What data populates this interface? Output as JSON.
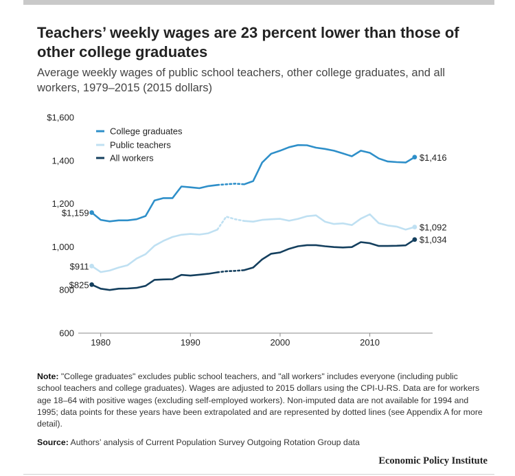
{
  "title": "Teachers’ weekly wages are 23 percent lower than those of other college graduates",
  "subtitle": "Average weekly wages of public school teachers, other college graduates, and all workers, 1979–2015 (2015 dollars)",
  "colors": {
    "college": "#2e8fc9",
    "teachers": "#bfe0f2",
    "workers": "#143f5e",
    "axis": "#888888",
    "text": "#222222"
  },
  "chart_data": {
    "type": "line",
    "title": "",
    "xlabel": "",
    "ylabel": "",
    "xlim": [
      1977.5,
      2017
    ],
    "ylim": [
      600,
      1600
    ],
    "y_ticks": [
      {
        "value": 600,
        "label": "600"
      },
      {
        "value": 800,
        "label": "800"
      },
      {
        "value": 1000,
        "label": "1,000"
      },
      {
        "value": 1200,
        "label": "1,200"
      },
      {
        "value": 1400,
        "label": "1,400"
      },
      {
        "value": 1600,
        "label": "$1,600"
      }
    ],
    "x_ticks": [
      {
        "value": 1980,
        "label": "1980"
      },
      {
        "value": 1990,
        "label": "1990"
      },
      {
        "value": 2000,
        "label": "2000"
      },
      {
        "value": 2010,
        "label": "2010"
      }
    ],
    "legend_position": "top-left",
    "dotted_years": [
      1994,
      1995
    ],
    "x": [
      1979,
      1980,
      1981,
      1982,
      1983,
      1984,
      1985,
      1986,
      1987,
      1988,
      1989,
      1990,
      1991,
      1992,
      1993,
      1994,
      1995,
      1996,
      1997,
      1998,
      1999,
      2000,
      2001,
      2002,
      2003,
      2004,
      2005,
      2006,
      2007,
      2008,
      2009,
      2010,
      2011,
      2012,
      2013,
      2014,
      2015
    ],
    "series": [
      {
        "key": "college",
        "name": "College graduates",
        "values": [
          1159,
          1125,
          1118,
          1123,
          1123,
          1128,
          1143,
          1215,
          1226,
          1226,
          1280,
          1276,
          1272,
          1282,
          1287,
          1290,
          1293,
          1290,
          1305,
          1391,
          1432,
          1446,
          1462,
          1472,
          1471,
          1460,
          1454,
          1446,
          1433,
          1420,
          1446,
          1436,
          1410,
          1396,
          1393,
          1391,
          1416
        ],
        "start_label": "$1,159",
        "end_label": "$1,416"
      },
      {
        "key": "teachers",
        "name": "Public teachers",
        "values": [
          911,
          883,
          890,
          904,
          915,
          946,
          966,
          1005,
          1028,
          1046,
          1056,
          1060,
          1057,
          1063,
          1080,
          1140,
          1128,
          1120,
          1117,
          1125,
          1128,
          1130,
          1121,
          1130,
          1142,
          1146,
          1117,
          1106,
          1109,
          1101,
          1131,
          1151,
          1110,
          1099,
          1094,
          1080,
          1092
        ],
        "start_label": "$911",
        "end_label": "$1,092"
      },
      {
        "key": "workers",
        "name": "All workers",
        "values": [
          825,
          806,
          800,
          806,
          807,
          810,
          819,
          847,
          849,
          850,
          870,
          867,
          871,
          875,
          882,
          887,
          889,
          892,
          904,
          942,
          968,
          974,
          991,
          1003,
          1008,
          1008,
          1003,
          999,
          997,
          999,
          1022,
          1017,
          1004,
          1004,
          1005,
          1007,
          1034
        ],
        "start_label": "$825",
        "end_label": "$1,034"
      }
    ]
  },
  "note_label": "Note:",
  "note_text": "\"College graduates\" excludes public school teachers, and \"all workers\" includes everyone (including public school teachers and college graduates). Wages are adjusted to 2015 dollars using the CPI-U-RS. Data are for workers age 18–64 with positive wages (excluding self-employed workers). Non-imputed data are not available for 1994 and 1995; data points for these years have been extrapolated and are represented by dotted lines (see Appendix A for more detail).",
  "source_label": "Source:",
  "source_text": "Authors’ analysis of Current Population Survey Outgoing Rotation Group data",
  "brand": "Economic Policy Institute"
}
